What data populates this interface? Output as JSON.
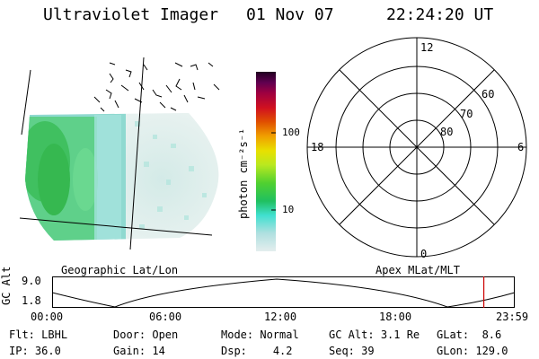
{
  "header": {
    "instrument": "Ultraviolet Imager",
    "date": "01 Nov 07",
    "time": "22:24:20 UT"
  },
  "colorbar": {
    "unit_label": "photon cm⁻²s⁻¹",
    "ticks": [
      "100",
      "10"
    ]
  },
  "polar_grid": {
    "mlt_labels": {
      "top": "12",
      "left": "18",
      "right": "6",
      "bottom": "0"
    },
    "lat_labels": [
      "60",
      "70",
      "80"
    ]
  },
  "panel_titles": {
    "left": "Geographic Lat/Lon",
    "right": "Apex MLat/MLT"
  },
  "altitude_plot": {
    "ylabel": "GC Alt",
    "yticks": [
      "9.0",
      "1.8"
    ],
    "xticks": [
      "00:00",
      "06:00",
      "12:00",
      "18:00",
      "23:59"
    ],
    "marker_time": "22:24",
    "marker_color": "#cc0000"
  },
  "status": {
    "row1": [
      {
        "key": "Flt:",
        "value": "LBHL"
      },
      {
        "key": "Door:",
        "value": "Open"
      },
      {
        "key": "Mode:",
        "value": "Normal"
      },
      {
        "key": "GC Alt:",
        "value": "3.1 Re"
      },
      {
        "key": "GLat:",
        "value": "8.6"
      }
    ],
    "row2": [
      {
        "key": "IP:",
        "value": "36.0"
      },
      {
        "key": "Gain:",
        "value": "14"
      },
      {
        "key": "Dsp:",
        "value": "4.2"
      },
      {
        "key": "Seq:",
        "value": "39"
      },
      {
        "key": "GLon:",
        "value": "129.0"
      }
    ]
  },
  "colors": {
    "colorbar_stops": [
      "#d8e8e8",
      "#a8dcdc",
      "#40e0d0",
      "#20c060",
      "#60d030",
      "#b8e820",
      "#e8e000",
      "#f0a000",
      "#e05000",
      "#d01020",
      "#a00040",
      "#600050",
      "#200020"
    ]
  }
}
